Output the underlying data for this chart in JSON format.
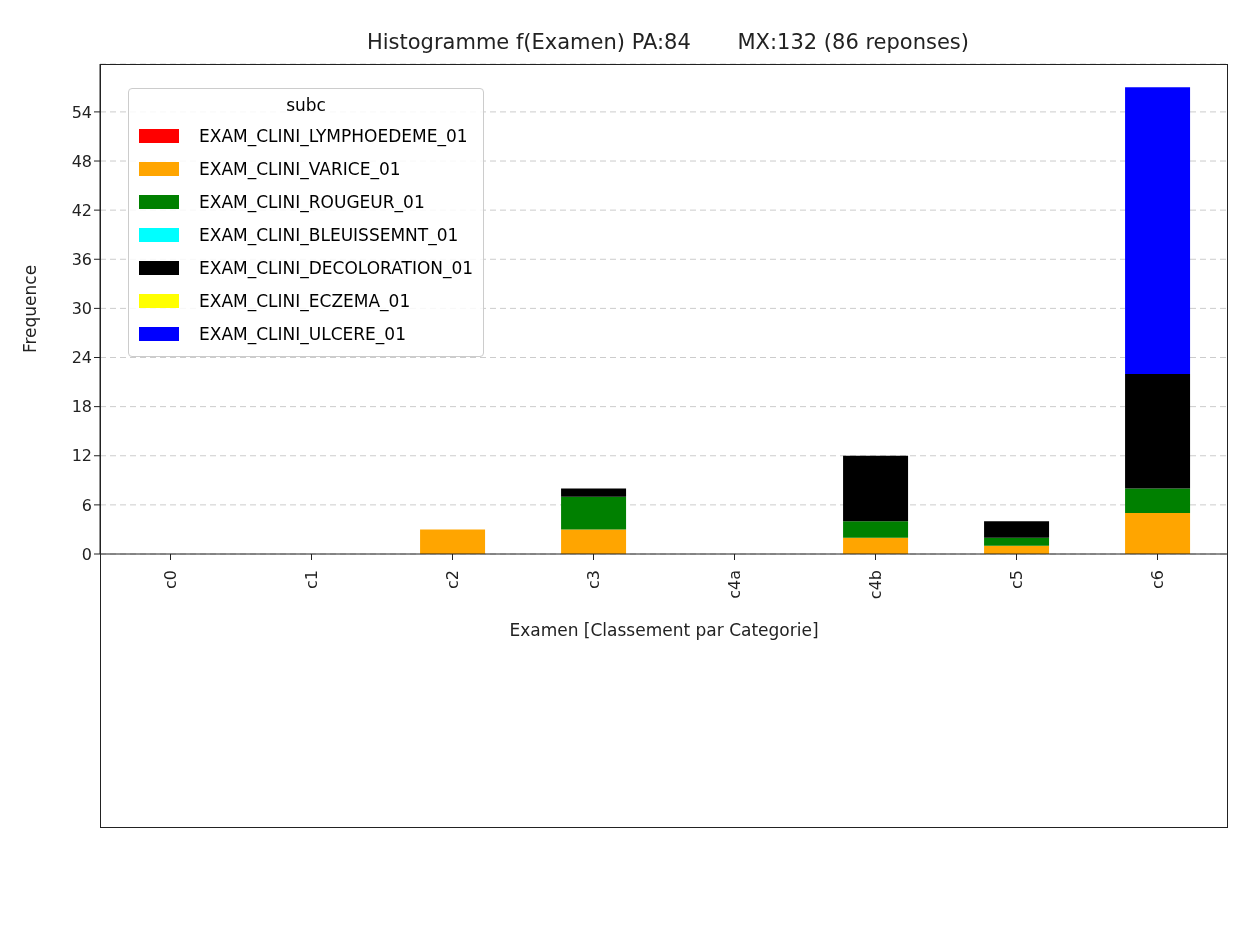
{
  "chart_data": {
    "type": "bar",
    "title": "Histogramme f(Examen) PA:84       MX:132 (86 reponses)",
    "xlabel": "Examen [Classement par Categorie]",
    "ylabel": "Frequence",
    "legend_title": "subc",
    "categories": [
      "c0",
      "c1",
      "c2",
      "c3",
      "c4a",
      "c4b",
      "c5",
      "c6"
    ],
    "series": [
      {
        "name": "EXAM_CLINI_LYMPHOEDEME_01",
        "color": "#ff0000",
        "values": [
          0,
          0,
          0,
          0,
          0,
          0,
          0,
          0
        ]
      },
      {
        "name": "EXAM_CLINI_VARICE_01",
        "color": "#ffa500",
        "values": [
          0,
          0,
          3,
          3,
          0,
          2,
          1,
          5
        ]
      },
      {
        "name": "EXAM_CLINI_ROUGEUR_01",
        "color": "#008000",
        "values": [
          0,
          0,
          0,
          4,
          0,
          2,
          1,
          3
        ]
      },
      {
        "name": "EXAM_CLINI_BLEUISSEMNT_01",
        "color": "#00ffff",
        "values": [
          0,
          0,
          0,
          0,
          0,
          0,
          0,
          0
        ]
      },
      {
        "name": "EXAM_CLINI_DECOLORATION_01",
        "color": "#000000",
        "values": [
          0,
          0,
          0,
          1,
          0,
          8,
          2,
          14
        ]
      },
      {
        "name": "EXAM_CLINI_ECZEMA_01",
        "color": "#ffff00",
        "values": [
          0,
          0,
          0,
          0,
          0,
          0,
          0,
          0
        ]
      },
      {
        "name": "EXAM_CLINI_ULCERE_01",
        "color": "#0000ff",
        "values": [
          0,
          0,
          0,
          0,
          0,
          0,
          0,
          35
        ]
      }
    ],
    "stacked": true,
    "ylim": [
      0,
      59.85
    ],
    "yticks": [
      0,
      6,
      12,
      18,
      24,
      30,
      36,
      42,
      48,
      54
    ],
    "grid": "y",
    "legend": "top left"
  }
}
